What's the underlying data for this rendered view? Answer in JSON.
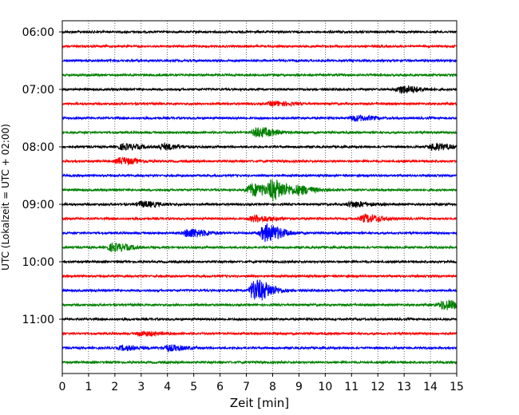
{
  "chart_data": {
    "type": "line",
    "title": "",
    "xlabel": "Zeit  [min]",
    "ylabel": "UTC (Lokalzeit = UTC + 02:00)",
    "xlim": [
      0,
      15
    ],
    "x_ticks": [
      "0",
      "1",
      "2",
      "3",
      "4",
      "5",
      "6",
      "7",
      "8",
      "9",
      "10",
      "11",
      "12",
      "13",
      "14",
      "15"
    ],
    "y_tick_labels": [
      "06:00",
      "07:00",
      "08:00",
      "09:00",
      "10:00",
      "11:00"
    ],
    "grid": "vertical-dotted",
    "colors": [
      "#000000",
      "#ff0000",
      "#0000ff",
      "#008000"
    ],
    "traces": [
      {
        "start": "06:00",
        "color": "#000000",
        "events": []
      },
      {
        "start": "06:15",
        "color": "#ff0000",
        "events": []
      },
      {
        "start": "06:30",
        "color": "#0000ff",
        "events": []
      },
      {
        "start": "06:45",
        "color": "#008000",
        "events": []
      },
      {
        "start": "07:00",
        "color": "#000000",
        "events": [
          {
            "t": 12.9,
            "amp": 0.35
          }
        ]
      },
      {
        "start": "07:15",
        "color": "#ff0000",
        "events": [
          {
            "t": 8.0,
            "amp": 0.2
          }
        ]
      },
      {
        "start": "07:30",
        "color": "#0000ff",
        "events": [
          {
            "t": 11.1,
            "amp": 0.25
          }
        ]
      },
      {
        "start": "07:45",
        "color": "#008000",
        "events": [
          {
            "t": 7.4,
            "amp": 0.45
          }
        ]
      },
      {
        "start": "08:00",
        "color": "#000000",
        "events": [
          {
            "t": 2.3,
            "amp": 0.25
          },
          {
            "t": 3.8,
            "amp": 0.25
          },
          {
            "t": 14.1,
            "amp": 0.3
          }
        ]
      },
      {
        "start": "08:15",
        "color": "#ff0000",
        "events": [
          {
            "t": 2.2,
            "amp": 0.3
          }
        ]
      },
      {
        "start": "08:30",
        "color": "#0000ff",
        "events": []
      },
      {
        "start": "08:45",
        "color": "#008000",
        "events": [
          {
            "t": 7.2,
            "amp": 0.6
          },
          {
            "t": 8.0,
            "amp": 0.8
          },
          {
            "t": 9.0,
            "amp": 0.3
          }
        ]
      },
      {
        "start": "09:00",
        "color": "#000000",
        "events": [
          {
            "t": 3.0,
            "amp": 0.25
          },
          {
            "t": 11.0,
            "amp": 0.25
          }
        ]
      },
      {
        "start": "09:15",
        "color": "#ff0000",
        "events": [
          {
            "t": 7.3,
            "amp": 0.3
          },
          {
            "t": 11.5,
            "amp": 0.35
          }
        ]
      },
      {
        "start": "09:30",
        "color": "#0000ff",
        "events": [
          {
            "t": 4.8,
            "amp": 0.4
          },
          {
            "t": 7.7,
            "amp": 0.8
          }
        ]
      },
      {
        "start": "09:45",
        "color": "#008000",
        "events": [
          {
            "t": 1.9,
            "amp": 0.35
          }
        ]
      },
      {
        "start": "10:00",
        "color": "#000000",
        "events": []
      },
      {
        "start": "10:15",
        "color": "#ff0000",
        "events": []
      },
      {
        "start": "10:30",
        "color": "#0000ff",
        "events": [
          {
            "t": 7.3,
            "amp": 1.0
          }
        ]
      },
      {
        "start": "10:45",
        "color": "#008000",
        "events": [
          {
            "t": 14.5,
            "amp": 0.45
          }
        ]
      },
      {
        "start": "11:00",
        "color": "#000000",
        "events": []
      },
      {
        "start": "11:15",
        "color": "#ff0000",
        "events": [
          {
            "t": 3.0,
            "amp": 0.2
          }
        ]
      },
      {
        "start": "11:30",
        "color": "#0000ff",
        "events": [
          {
            "t": 2.3,
            "amp": 0.2
          },
          {
            "t": 4.0,
            "amp": 0.25
          }
        ]
      },
      {
        "start": "11:45",
        "color": "#008000",
        "events": []
      }
    ]
  }
}
